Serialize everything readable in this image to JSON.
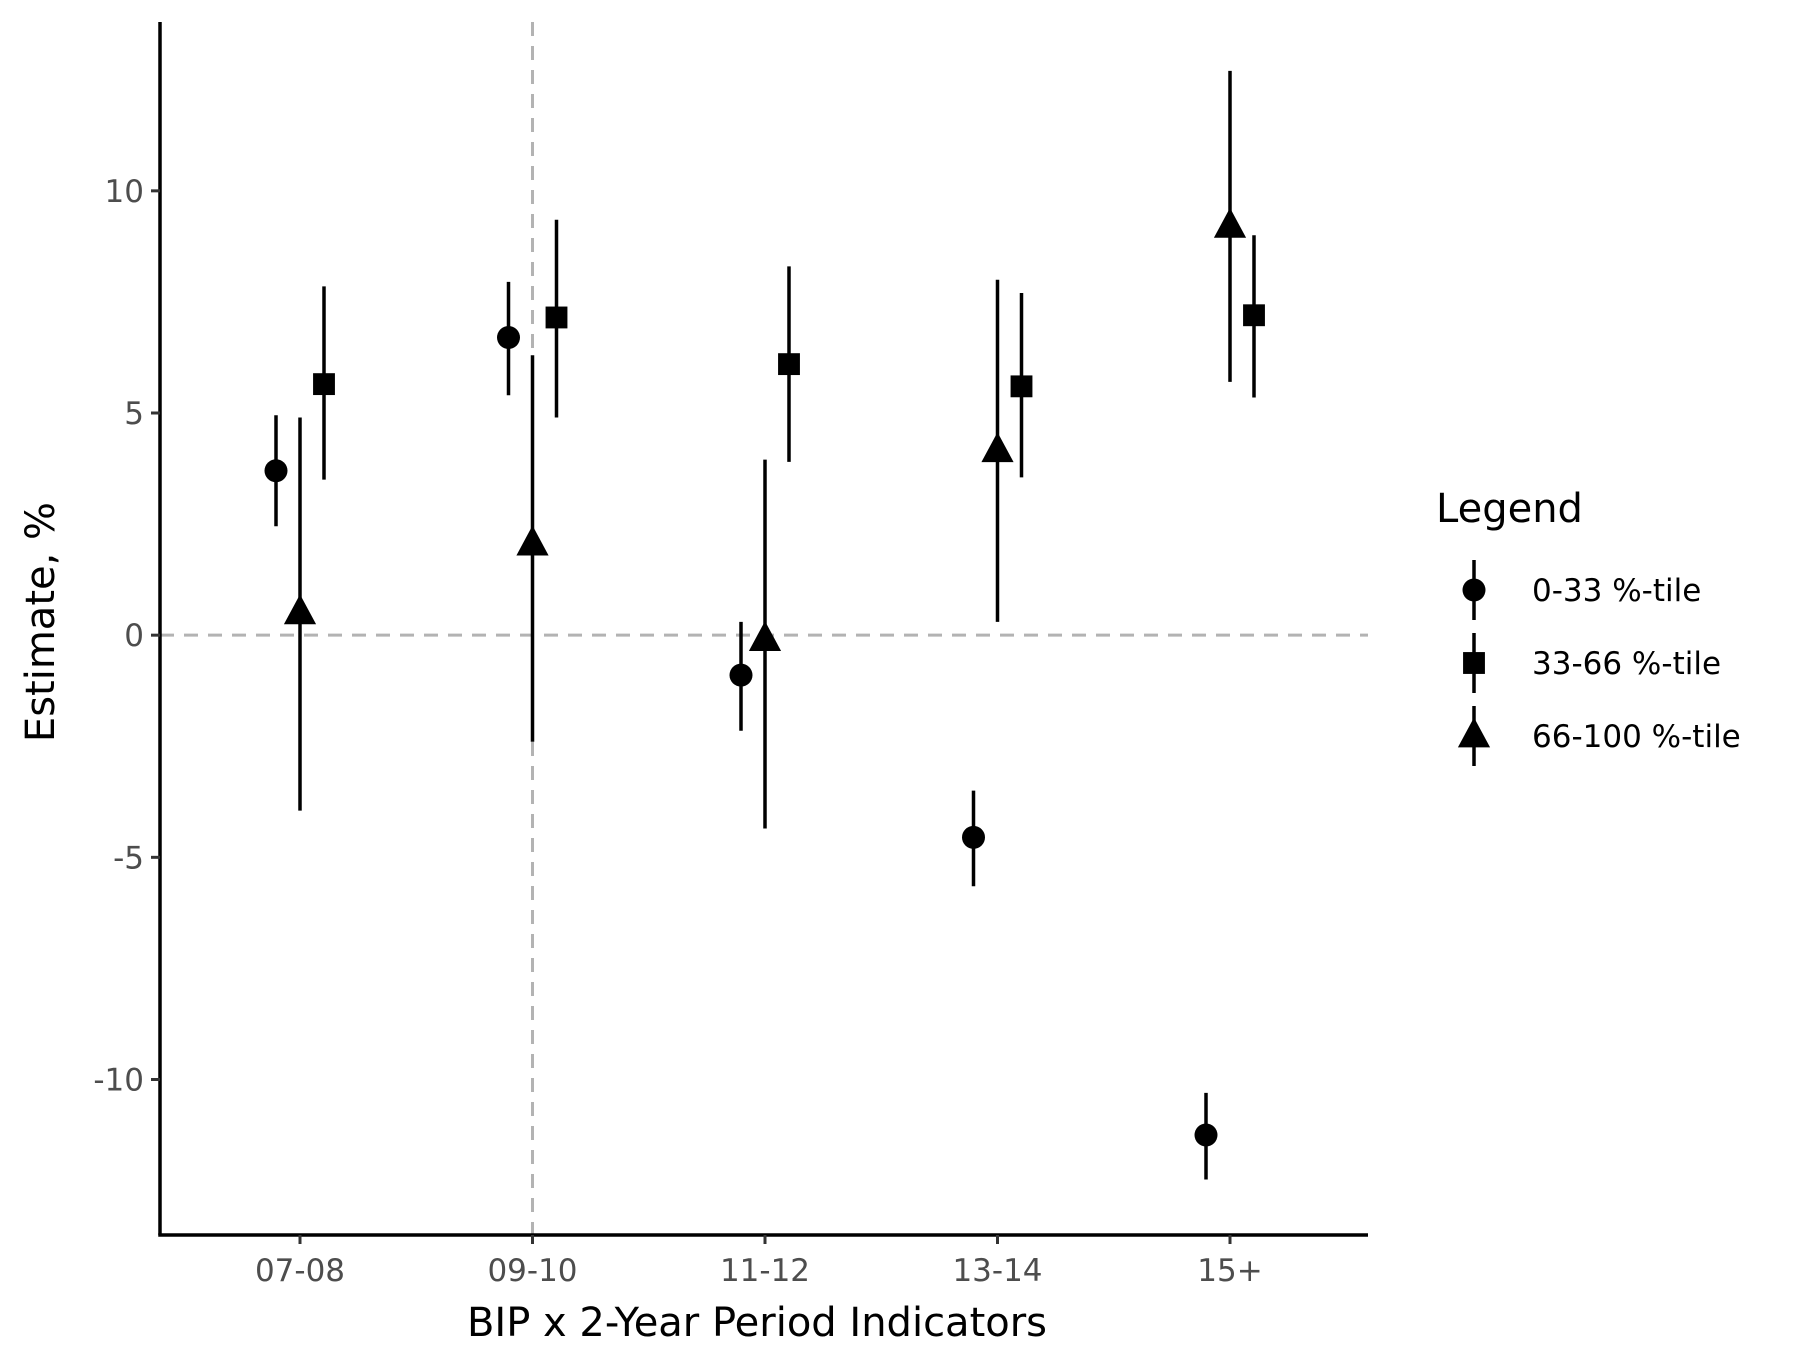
{
  "chart_data": {
    "type": "scatter",
    "subtype": "point-range",
    "title": "",
    "xlabel": "BIP x 2-Year Period Indicators",
    "ylabel": "Estimate, %",
    "categories": [
      "07-08",
      "09-10",
      "11-12",
      "13-14",
      "15+"
    ],
    "ylim": [
      -13.5,
      13.8
    ],
    "yticks": [
      -10,
      -5,
      0,
      5,
      10
    ],
    "ytick_labels": [
      "-10",
      "-5",
      "0",
      "5",
      "10"
    ],
    "reference_lines": {
      "y": 0,
      "x_category": "09-10",
      "style": "dashed",
      "color": "#b3b3b3"
    },
    "grid": false,
    "legend": {
      "title": "Legend",
      "position": "right"
    },
    "series": [
      {
        "name": "0-33 %-tile",
        "marker": "circle",
        "values": [
          3.7,
          6.7,
          -0.9,
          -4.55,
          -11.25
        ],
        "lower": [
          2.45,
          5.4,
          -2.15,
          -5.65,
          -12.25
        ],
        "upper": [
          4.95,
          7.95,
          0.3,
          -3.5,
          -10.3
        ]
      },
      {
        "name": "33-66 %-tile",
        "marker": "square",
        "values": [
          5.65,
          7.15,
          6.1,
          5.6,
          7.2
        ],
        "lower": [
          3.5,
          4.9,
          3.9,
          3.55,
          5.35
        ],
        "upper": [
          7.85,
          9.35,
          8.3,
          7.7,
          9.0
        ]
      },
      {
        "name": "66-100 %-tile",
        "marker": "triangle",
        "values": [
          0.5,
          2.05,
          -0.1,
          4.15,
          9.2
        ],
        "lower": [
          -3.95,
          -2.4,
          -4.35,
          0.3,
          5.7
        ],
        "upper": [
          4.9,
          6.3,
          3.95,
          8.0,
          12.7
        ]
      }
    ],
    "colors": {
      "marks": "#000000",
      "reference": "#b3b3b3",
      "tick_text": "#4d4d4d"
    }
  }
}
